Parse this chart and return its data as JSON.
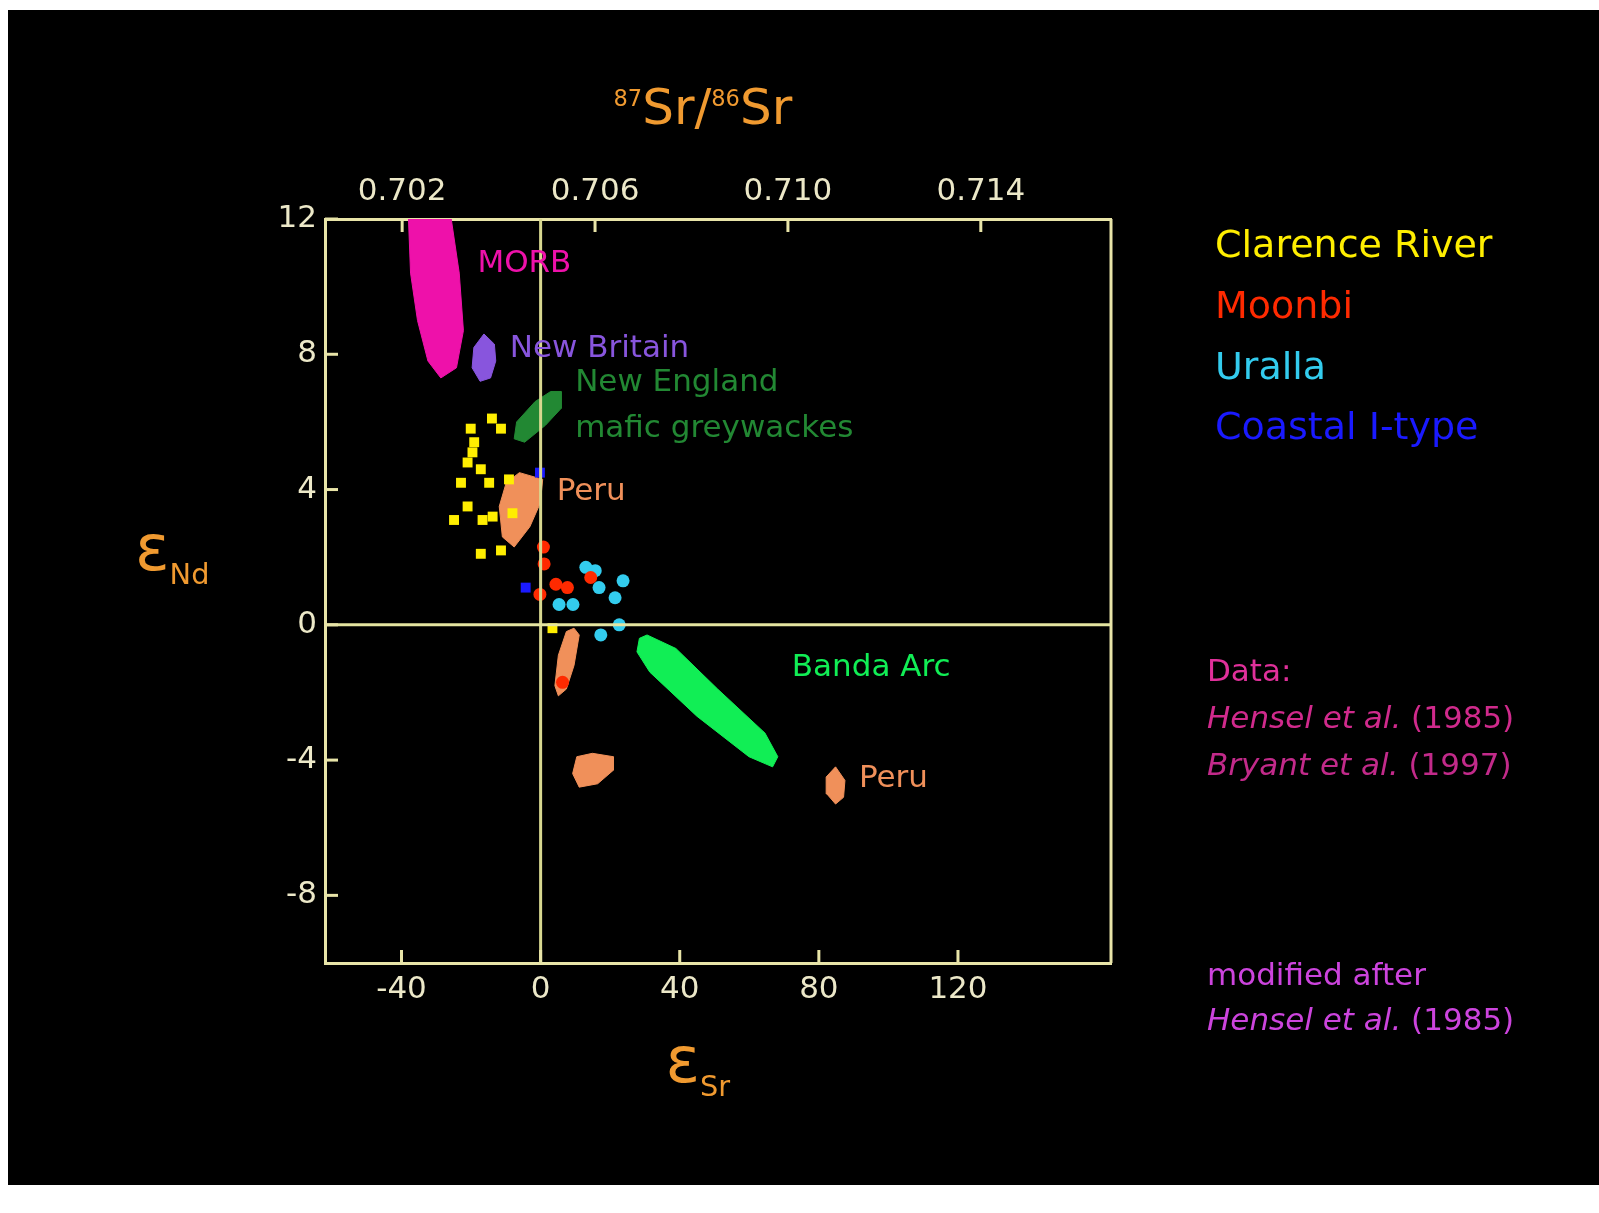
{
  "chart_data": {
    "type": "scatter",
    "xlabel": "ε$_{Sr}$",
    "ylabel": "ε$_{Nd}$",
    "x2label": "$^{87}$Sr/$^{86}$Sr",
    "xlim": [
      -62,
      164
    ],
    "xticks": [
      -40,
      0,
      40,
      80,
      120
    ],
    "ylim": [
      -10,
      12
    ],
    "yticks": [
      -8,
      -4,
      0,
      4,
      8,
      12
    ],
    "x2lim": [
      0.7004,
      0.7167
    ],
    "x2ticks": [
      {
        "value": 0.702,
        "label": "0.702"
      },
      {
        "value": 0.706,
        "label": "0.706"
      },
      {
        "value": 0.71,
        "label": "0.710"
      },
      {
        "value": 0.714,
        "label": "0.714"
      }
    ],
    "grid": false,
    "legend": "right",
    "ref_lines": [
      {
        "axis": "x",
        "value": 0,
        "color": "#d8d890"
      },
      {
        "axis": "y",
        "value": 0,
        "color": "#e4e4a0"
      }
    ],
    "series": [
      {
        "name": "MORB",
        "type": "area",
        "color": "#ee11aa",
        "x": [
          -38.0,
          -37.4,
          -35.4,
          -32.4,
          -28.7,
          -24.2,
          -22.2,
          -23.4,
          -25.7
        ],
        "values": [
          12,
          10.4,
          9.0,
          7.8,
          7.3,
          7.6,
          8.7,
          10.4,
          12
        ]
      },
      {
        "name": "New Britain",
        "type": "area",
        "color": "#8855dd",
        "x": [
          -16.3,
          -13.3,
          -12.9,
          -14.4,
          -17.4,
          -19.7,
          -19.2
        ],
        "values": [
          8.6,
          8.3,
          7.8,
          7.3,
          7.2,
          7.6,
          8.2
        ]
      },
      {
        "name": "New England mafic greywackes",
        "type": "area",
        "color": "#228833",
        "x": [
          5.9,
          5.9,
          1.4,
          -4.6,
          -7.6,
          -6.9,
          -1.6,
          2.9
        ],
        "values": [
          6.9,
          6.4,
          5.9,
          5.4,
          5.5,
          6.0,
          6.6,
          6.9
        ]
      },
      {
        "name": "Peru",
        "type": "area",
        "color": "#f0905a",
        "x": [
          -6.1,
          0.6,
          -0.1,
          -3.1,
          -7.6,
          -11.0,
          -11.9,
          -9.9
        ],
        "values": [
          4.5,
          4.3,
          3.6,
          2.9,
          2.3,
          2.6,
          3.5,
          4.2
        ]
      },
      {
        "type": "area",
        "color": "#f0905a",
        "x": [
          9.6,
          11.1,
          9.6,
          7.4,
          5.1,
          4.1,
          5.1,
          7.4
        ],
        "values": [
          -0.1,
          -0.3,
          -1.2,
          -1.9,
          -2.1,
          -1.8,
          -0.9,
          -0.2
        ]
      },
      {
        "type": "area",
        "color": "#f0905a",
        "x": [
          14.9,
          20.9,
          20.9,
          16.4,
          11.1,
          9.2,
          10.4
        ],
        "values": [
          -3.8,
          -3.9,
          -4.3,
          -4.7,
          -4.8,
          -4.4,
          -3.9
        ]
      },
      {
        "name": "Peru",
        "type": "area",
        "color": "#f0905a",
        "x": [
          84.8,
          87.5,
          87.1,
          84.8,
          82.3,
          82.1
        ],
        "values": [
          -4.2,
          -4.6,
          -5.1,
          -5.3,
          -5.0,
          -4.5
        ]
      },
      {
        "name": "Banda Arc",
        "type": "area",
        "color": "#11ee55",
        "x": [
          30.6,
          38.9,
          50.9,
          64.5,
          68.2,
          66.7,
          59.9,
          44.9,
          31.4,
          27.7,
          28.4
        ],
        "values": [
          -0.3,
          -0.7,
          -1.9,
          -3.2,
          -3.9,
          -4.2,
          -3.9,
          -2.7,
          -1.4,
          -0.8,
          -0.4
        ]
      },
      {
        "name": "Clarence River",
        "type": "scatter",
        "marker": "square",
        "color": "#ffee00",
        "x": [
          -14.0,
          -11.4,
          -20.1,
          -19.1,
          -19.6,
          -21.0,
          -17.2,
          -14.8,
          -22.9,
          -9.1,
          -21.0,
          -24.9,
          -16.7,
          -13.8,
          -8.1,
          -17.2,
          -11.4,
          3.4
        ],
        "values": [
          6.1,
          5.8,
          5.8,
          5.4,
          5.1,
          4.8,
          4.6,
          4.2,
          4.2,
          4.3,
          3.5,
          3.1,
          3.1,
          3.2,
          3.3,
          2.1,
          2.2,
          -0.1
        ]
      },
      {
        "name": "Moonbi",
        "type": "scatter",
        "marker": "circle",
        "color": "#ff2a00",
        "x": [
          0.8,
          1.0,
          4.4,
          7.7,
          -0.2,
          14.4,
          6.3
        ],
        "values": [
          2.3,
          1.8,
          1.2,
          1.1,
          0.9,
          1.4,
          -1.7
        ]
      },
      {
        "name": "Uralla",
        "type": "scatter",
        "marker": "circle",
        "color": "#33ccee",
        "x": [
          13.0,
          15.7,
          23.7,
          16.8,
          21.4,
          5.3,
          9.3,
          22.6,
          17.3
        ],
        "values": [
          1.7,
          1.6,
          1.3,
          1.1,
          0.8,
          0.6,
          0.6,
          0.0,
          -0.3
        ]
      },
      {
        "name": "Coastal I-type",
        "type": "scatter",
        "marker": "square",
        "color": "#1a1aff",
        "x": [
          -0.2,
          -4.3
        ],
        "values": [
          4.5,
          1.1
        ]
      }
    ],
    "annotations": [
      "Data:",
      "Hensel et al. (1985)",
      "Bryant et al. (1997)",
      "modified after Hensel et al. (1985)"
    ]
  }
}
